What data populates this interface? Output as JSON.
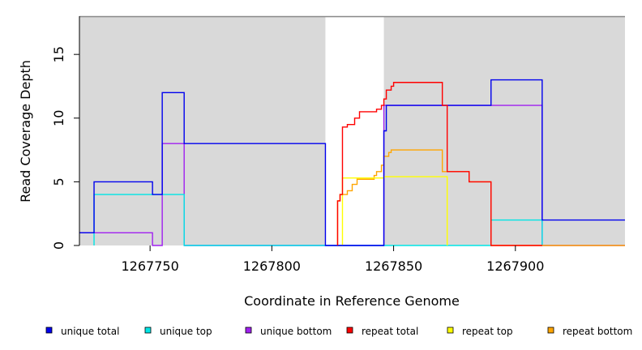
{
  "chart_data": {
    "type": "line",
    "title": "",
    "xlabel": "Coordinate in Reference Genome",
    "ylabel": "Read Coverage Depth",
    "xlim": [
      1267721,
      1267945
    ],
    "ylim": [
      0,
      18
    ],
    "x_ticks": [
      1267750,
      1267800,
      1267850,
      1267900
    ],
    "y_ticks": [
      0,
      5,
      10,
      15
    ],
    "grid": false,
    "background": {
      "color": "#d9d9d9",
      "unshaded_region": [
        1267822,
        1267846
      ]
    },
    "legend_position": "bottom",
    "series": [
      {
        "name": "unique total",
        "color": "#0000ee",
        "points": [
          [
            1267721,
            1
          ],
          [
            1267727,
            1
          ],
          [
            1267727,
            5
          ],
          [
            1267751,
            5
          ],
          [
            1267751,
            4
          ],
          [
            1267755,
            4
          ],
          [
            1267755,
            12
          ],
          [
            1267764,
            12
          ],
          [
            1267764,
            8
          ],
          [
            1267822,
            8
          ],
          [
            1267822,
            0
          ],
          [
            1267846,
            0
          ],
          [
            1267846,
            9
          ],
          [
            1267847,
            9
          ],
          [
            1267847,
            11
          ],
          [
            1267890,
            11
          ],
          [
            1267890,
            13
          ],
          [
            1267911,
            13
          ],
          [
            1267911,
            2
          ],
          [
            1267945,
            2
          ]
        ]
      },
      {
        "name": "unique top",
        "color": "#00e5e5",
        "points": [
          [
            1267727,
            0
          ],
          [
            1267727,
            4
          ],
          [
            1267764,
            4
          ],
          [
            1267764,
            0
          ],
          [
            1267890,
            0
          ],
          [
            1267890,
            2
          ],
          [
            1267911,
            2
          ],
          [
            1267911,
            0
          ]
        ]
      },
      {
        "name": "unique bottom",
        "color": "#a020f0",
        "points": [
          [
            1267721,
            1
          ],
          [
            1267751,
            1
          ],
          [
            1267751,
            0
          ],
          [
            1267755,
            0
          ],
          [
            1267755,
            8
          ],
          [
            1267764,
            8
          ],
          [
            1267764,
            0
          ],
          [
            1267846,
            0
          ],
          [
            1267846,
            11
          ],
          [
            1267911,
            11
          ],
          [
            1267911,
            0
          ],
          [
            1267945,
            0
          ]
        ]
      },
      {
        "name": "repeat total",
        "color": "#ff0000",
        "points": [
          [
            1267827,
            0
          ],
          [
            1267827,
            3.5
          ],
          [
            1267828,
            3.5
          ],
          [
            1267828,
            4
          ],
          [
            1267829,
            4
          ],
          [
            1267829,
            9.3
          ],
          [
            1267831,
            9.3
          ],
          [
            1267831,
            9.5
          ],
          [
            1267834,
            9.5
          ],
          [
            1267834,
            10
          ],
          [
            1267836,
            10
          ],
          [
            1267836,
            10.5
          ],
          [
            1267843,
            10.5
          ],
          [
            1267843,
            10.7
          ],
          [
            1267845,
            10.7
          ],
          [
            1267845,
            11
          ],
          [
            1267846,
            11
          ],
          [
            1267846,
            11.5
          ],
          [
            1267847,
            11.5
          ],
          [
            1267847,
            12.2
          ],
          [
            1267849,
            12.2
          ],
          [
            1267849,
            12.5
          ],
          [
            1267850,
            12.5
          ],
          [
            1267850,
            12.8
          ],
          [
            1267870,
            12.8
          ],
          [
            1267870,
            11
          ],
          [
            1267872,
            11
          ],
          [
            1267872,
            5.8
          ],
          [
            1267881,
            5.8
          ],
          [
            1267881,
            5
          ],
          [
            1267890,
            5
          ],
          [
            1267890,
            0
          ],
          [
            1267911,
            0
          ]
        ]
      },
      {
        "name": "repeat top",
        "color": "#ffff00",
        "points": [
          [
            1267829,
            0
          ],
          [
            1267829,
            5.3
          ],
          [
            1267846,
            5.3
          ],
          [
            1267846,
            5.4
          ],
          [
            1267872,
            5.4
          ],
          [
            1267872,
            0
          ]
        ]
      },
      {
        "name": "repeat bottom",
        "color": "#ffa500",
        "points": [
          [
            1267827,
            0
          ],
          [
            1267827,
            3.5
          ],
          [
            1267828,
            3.5
          ],
          [
            1267828,
            4
          ],
          [
            1267831,
            4
          ],
          [
            1267831,
            4.3
          ],
          [
            1267833,
            4.3
          ],
          [
            1267833,
            4.8
          ],
          [
            1267835,
            4.8
          ],
          [
            1267835,
            5.2
          ],
          [
            1267842,
            5.2
          ],
          [
            1267842,
            5.5
          ],
          [
            1267843,
            5.5
          ],
          [
            1267843,
            5.8
          ],
          [
            1267845,
            5.8
          ],
          [
            1267845,
            6.3
          ],
          [
            1267846,
            6.3
          ],
          [
            1267846,
            7
          ],
          [
            1267848,
            7
          ],
          [
            1267848,
            7.3
          ],
          [
            1267849,
            7.3
          ],
          [
            1267849,
            7.5
          ],
          [
            1267870,
            7.5
          ],
          [
            1267870,
            5.8
          ],
          [
            1267872,
            5.8
          ],
          [
            1267881,
            5.8
          ],
          [
            1267881,
            5
          ],
          [
            1267890,
            5
          ],
          [
            1267890,
            0
          ],
          [
            1267945,
            0
          ]
        ]
      }
    ]
  }
}
